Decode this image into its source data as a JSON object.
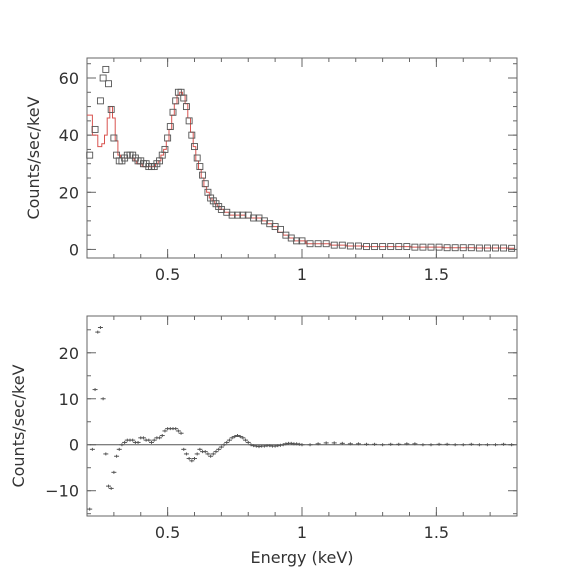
{
  "chart_data": [
    {
      "type": "scatter",
      "panel": "spectrum",
      "ylabel": "Counts/sec/keV",
      "xlabel": "",
      "xlim": [
        0.2,
        1.8
      ],
      "ylim": [
        -3,
        67
      ],
      "xticks": [
        0.5,
        1,
        1.5
      ],
      "xtick_labels": [
        "0.5",
        "1",
        "1.5"
      ],
      "yticks": [
        0,
        20,
        40,
        60
      ],
      "ytick_labels": [
        "0",
        "20",
        "40",
        "60"
      ],
      "series": [
        {
          "kind": "data",
          "marker": "square",
          "color": "#555555",
          "x": [
            0.21,
            0.23,
            0.25,
            0.26,
            0.27,
            0.28,
            0.29,
            0.3,
            0.31,
            0.32,
            0.33,
            0.34,
            0.35,
            0.36,
            0.37,
            0.38,
            0.39,
            0.4,
            0.41,
            0.42,
            0.43,
            0.44,
            0.45,
            0.46,
            0.47,
            0.48,
            0.49,
            0.5,
            0.51,
            0.52,
            0.53,
            0.54,
            0.55,
            0.56,
            0.57,
            0.58,
            0.59,
            0.6,
            0.61,
            0.62,
            0.63,
            0.64,
            0.65,
            0.66,
            0.67,
            0.68,
            0.69,
            0.7,
            0.72,
            0.74,
            0.76,
            0.78,
            0.8,
            0.82,
            0.84,
            0.86,
            0.88,
            0.9,
            0.92,
            0.94,
            0.96,
            0.98,
            1.0,
            1.03,
            1.06,
            1.09,
            1.12,
            1.15,
            1.18,
            1.21,
            1.24,
            1.27,
            1.3,
            1.33,
            1.36,
            1.39,
            1.42,
            1.45,
            1.48,
            1.51,
            1.54,
            1.57,
            1.6,
            1.63,
            1.66,
            1.69,
            1.72,
            1.75,
            1.78
          ],
          "y": [
            33,
            42,
            52,
            60,
            63,
            58,
            49,
            39,
            33,
            31,
            31,
            32,
            33,
            33,
            33,
            32,
            31,
            31,
            30,
            30,
            29,
            29,
            29,
            30,
            31,
            33,
            35,
            39,
            43,
            48,
            52,
            55,
            55,
            53,
            50,
            45,
            40,
            36,
            32,
            29,
            26,
            23,
            20,
            18,
            17,
            16,
            15,
            14,
            13,
            12,
            12,
            12,
            12,
            11,
            11,
            10,
            9,
            8,
            7,
            5,
            4,
            3,
            3,
            2,
            2,
            2,
            1.5,
            1.5,
            1.2,
            1.2,
            1,
            1,
            1,
            1,
            1,
            1,
            0.8,
            0.8,
            0.8,
            0.8,
            0.6,
            0.6,
            0.6,
            0.6,
            0.5,
            0.5,
            0.5,
            0.5,
            0.4
          ]
        },
        {
          "kind": "model",
          "line": "step",
          "color": "#d9534f",
          "x": [
            0.21,
            0.23,
            0.25,
            0.26,
            0.27,
            0.28,
            0.29,
            0.3,
            0.31,
            0.32,
            0.33,
            0.34,
            0.35,
            0.36,
            0.37,
            0.38,
            0.39,
            0.4,
            0.41,
            0.42,
            0.43,
            0.44,
            0.45,
            0.46,
            0.47,
            0.48,
            0.49,
            0.5,
            0.51,
            0.52,
            0.53,
            0.54,
            0.55,
            0.56,
            0.57,
            0.58,
            0.59,
            0.6,
            0.61,
            0.62,
            0.63,
            0.64,
            0.65,
            0.66,
            0.67,
            0.68,
            0.69,
            0.7,
            0.72,
            0.74,
            0.76,
            0.78,
            0.8,
            0.82,
            0.84,
            0.86,
            0.88,
            0.9,
            0.92,
            0.94,
            0.96,
            0.98,
            1.0,
            1.03,
            1.06,
            1.09,
            1.12,
            1.15,
            1.18,
            1.21,
            1.24,
            1.27,
            1.3,
            1.33,
            1.36,
            1.39,
            1.42,
            1.45,
            1.48,
            1.51,
            1.54,
            1.57,
            1.6,
            1.63,
            1.66,
            1.69,
            1.72,
            1.75,
            1.78
          ],
          "y": [
            47,
            40,
            36,
            37,
            40,
            46,
            50,
            46,
            38,
            33,
            32,
            32,
            32,
            32,
            32,
            31,
            30,
            30,
            29,
            29,
            29,
            29,
            29,
            30,
            31,
            33,
            35,
            38,
            42,
            47,
            51,
            54,
            55,
            54,
            51,
            46,
            41,
            36,
            31,
            28,
            25,
            22,
            20,
            18,
            17,
            16,
            15,
            14,
            13,
            12,
            12,
            12,
            11,
            11,
            11,
            10,
            9,
            8,
            6,
            5,
            4,
            3,
            3,
            2,
            2,
            2,
            1.5,
            1.5,
            1.2,
            1.2,
            1,
            1,
            1,
            1,
            1,
            1,
            0.8,
            0.8,
            0.8,
            0.8,
            0.6,
            0.6,
            0.6,
            0.6,
            0.5,
            0.5,
            0.5,
            0.5,
            0.4
          ]
        }
      ]
    },
    {
      "type": "scatter",
      "panel": "residuals",
      "ylabel": "Counts/sec/keV",
      "xlabel": "Energy (keV)",
      "xlim": [
        0.2,
        1.8
      ],
      "ylim": [
        -15.5,
        28
      ],
      "xticks": [
        0.5,
        1,
        1.5
      ],
      "xtick_labels": [
        "0.5",
        "1",
        "1.5"
      ],
      "yticks": [
        -10,
        0,
        10,
        20
      ],
      "ytick_labels": [
        "−10",
        "0",
        "10",
        "20"
      ],
      "series": [
        {
          "kind": "residual",
          "marker": "cross",
          "color": "#555555",
          "x": [
            0.21,
            0.22,
            0.23,
            0.24,
            0.25,
            0.26,
            0.27,
            0.28,
            0.29,
            0.3,
            0.31,
            0.32,
            0.33,
            0.34,
            0.35,
            0.36,
            0.37,
            0.38,
            0.39,
            0.4,
            0.41,
            0.42,
            0.43,
            0.44,
            0.45,
            0.46,
            0.47,
            0.48,
            0.49,
            0.5,
            0.51,
            0.52,
            0.53,
            0.54,
            0.55,
            0.56,
            0.57,
            0.58,
            0.59,
            0.6,
            0.61,
            0.62,
            0.63,
            0.64,
            0.65,
            0.66,
            0.67,
            0.68,
            0.69,
            0.7,
            0.71,
            0.72,
            0.73,
            0.74,
            0.75,
            0.76,
            0.77,
            0.78,
            0.79,
            0.8,
            0.81,
            0.82,
            0.83,
            0.84,
            0.85,
            0.86,
            0.87,
            0.88,
            0.89,
            0.9,
            0.91,
            0.92,
            0.93,
            0.94,
            0.95,
            0.96,
            0.97,
            0.98,
            0.99,
            1.0,
            1.03,
            1.06,
            1.09,
            1.12,
            1.15,
            1.18,
            1.21,
            1.24,
            1.27,
            1.3,
            1.33,
            1.36,
            1.39,
            1.42,
            1.45,
            1.48,
            1.51,
            1.54,
            1.57,
            1.6,
            1.63,
            1.66,
            1.69,
            1.72,
            1.75,
            1.78
          ],
          "y": [
            -14,
            -1,
            12,
            24.5,
            25.5,
            10,
            -2,
            -9,
            -9.5,
            -6,
            -2.5,
            -1,
            0,
            0.5,
            1,
            1,
            1,
            0.5,
            0.5,
            1.5,
            1.5,
            1,
            1,
            0.5,
            1,
            1.5,
            1.5,
            2,
            3,
            3.5,
            3.5,
            3.5,
            3.5,
            3,
            2.5,
            -1,
            -2,
            -3,
            -3.5,
            -3,
            -2,
            -1,
            -1.5,
            -1.5,
            -2,
            -2.5,
            -2,
            -1.5,
            -1,
            -0.5,
            0,
            0.5,
            1,
            1.5,
            1.8,
            2,
            1.8,
            1.5,
            1,
            0.5,
            0,
            -0.2,
            -0.3,
            -0.4,
            -0.3,
            -0.3,
            -0.2,
            -0.2,
            -0.3,
            -0.3,
            -0.2,
            -0.1,
            0,
            0.2,
            0.3,
            0.3,
            0.2,
            0.2,
            0.1,
            0,
            0,
            0.2,
            0.4,
            0.4,
            0.3,
            0.2,
            0.2,
            0.1,
            0.1,
            0,
            0.1,
            0.1,
            0.2,
            0.2,
            0,
            0,
            0.1,
            0.1,
            0,
            0,
            0.1,
            0,
            0,
            0,
            0.1,
            0
          ]
        }
      ]
    }
  ]
}
